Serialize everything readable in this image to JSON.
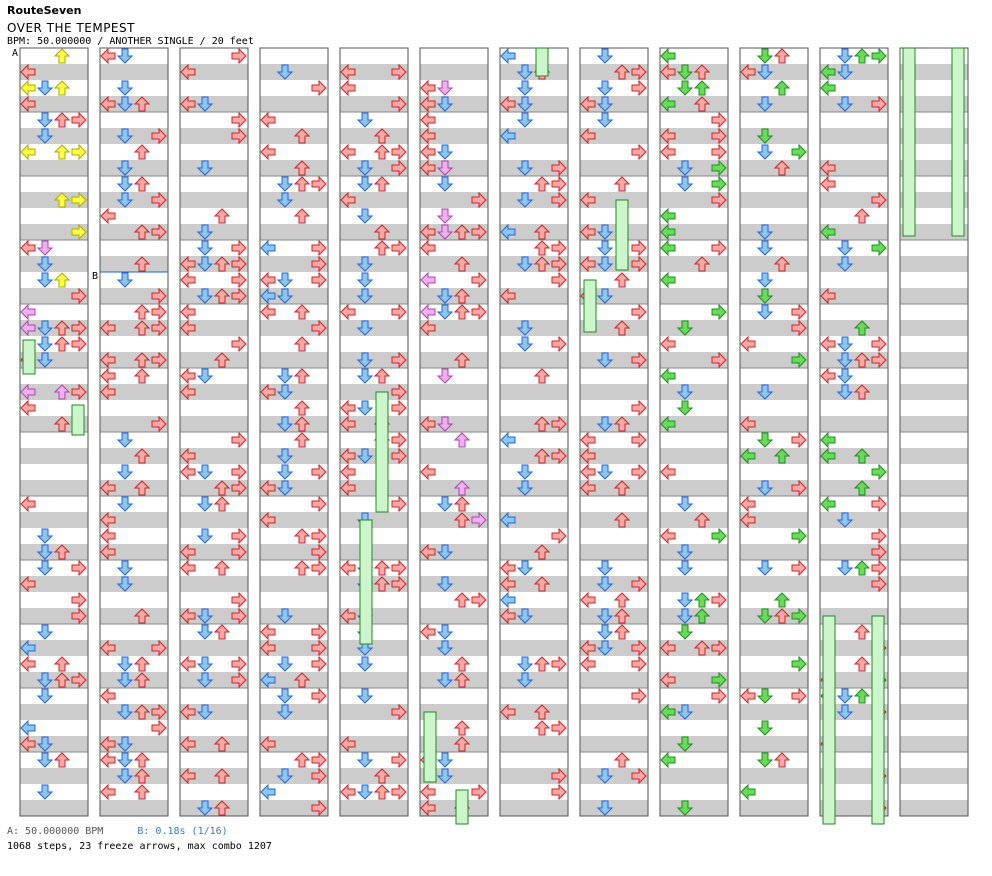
{
  "header": {
    "artist": "RouteSeven",
    "title": "OVER THE TEMPEST",
    "meta": "BPM: 50.000000 / ANOTHER SINGLE / 20 feet"
  },
  "markers": {
    "a": "A",
    "b": "B"
  },
  "footer": {
    "bpm_a": "A: 50.000000 BPM",
    "bpm_b": "B: 0.18s (1/16)",
    "stats": "1068 steps, 23 freeze arrows, max combo 1207"
  },
  "colors": {
    "left": "#f4a8a8",
    "down": "#8cc4f2",
    "up": "#f4a8a8",
    "right": "#f4a8a8",
    "green": "#66dd55",
    "yellow": "#ffff44",
    "pink": "#f0b0f0",
    "freeze": "#ccf5cc",
    "stripe": "#cccccc",
    "edge_red": "#cc2222",
    "edge_blue": "#2266cc"
  },
  "columns": 12
}
